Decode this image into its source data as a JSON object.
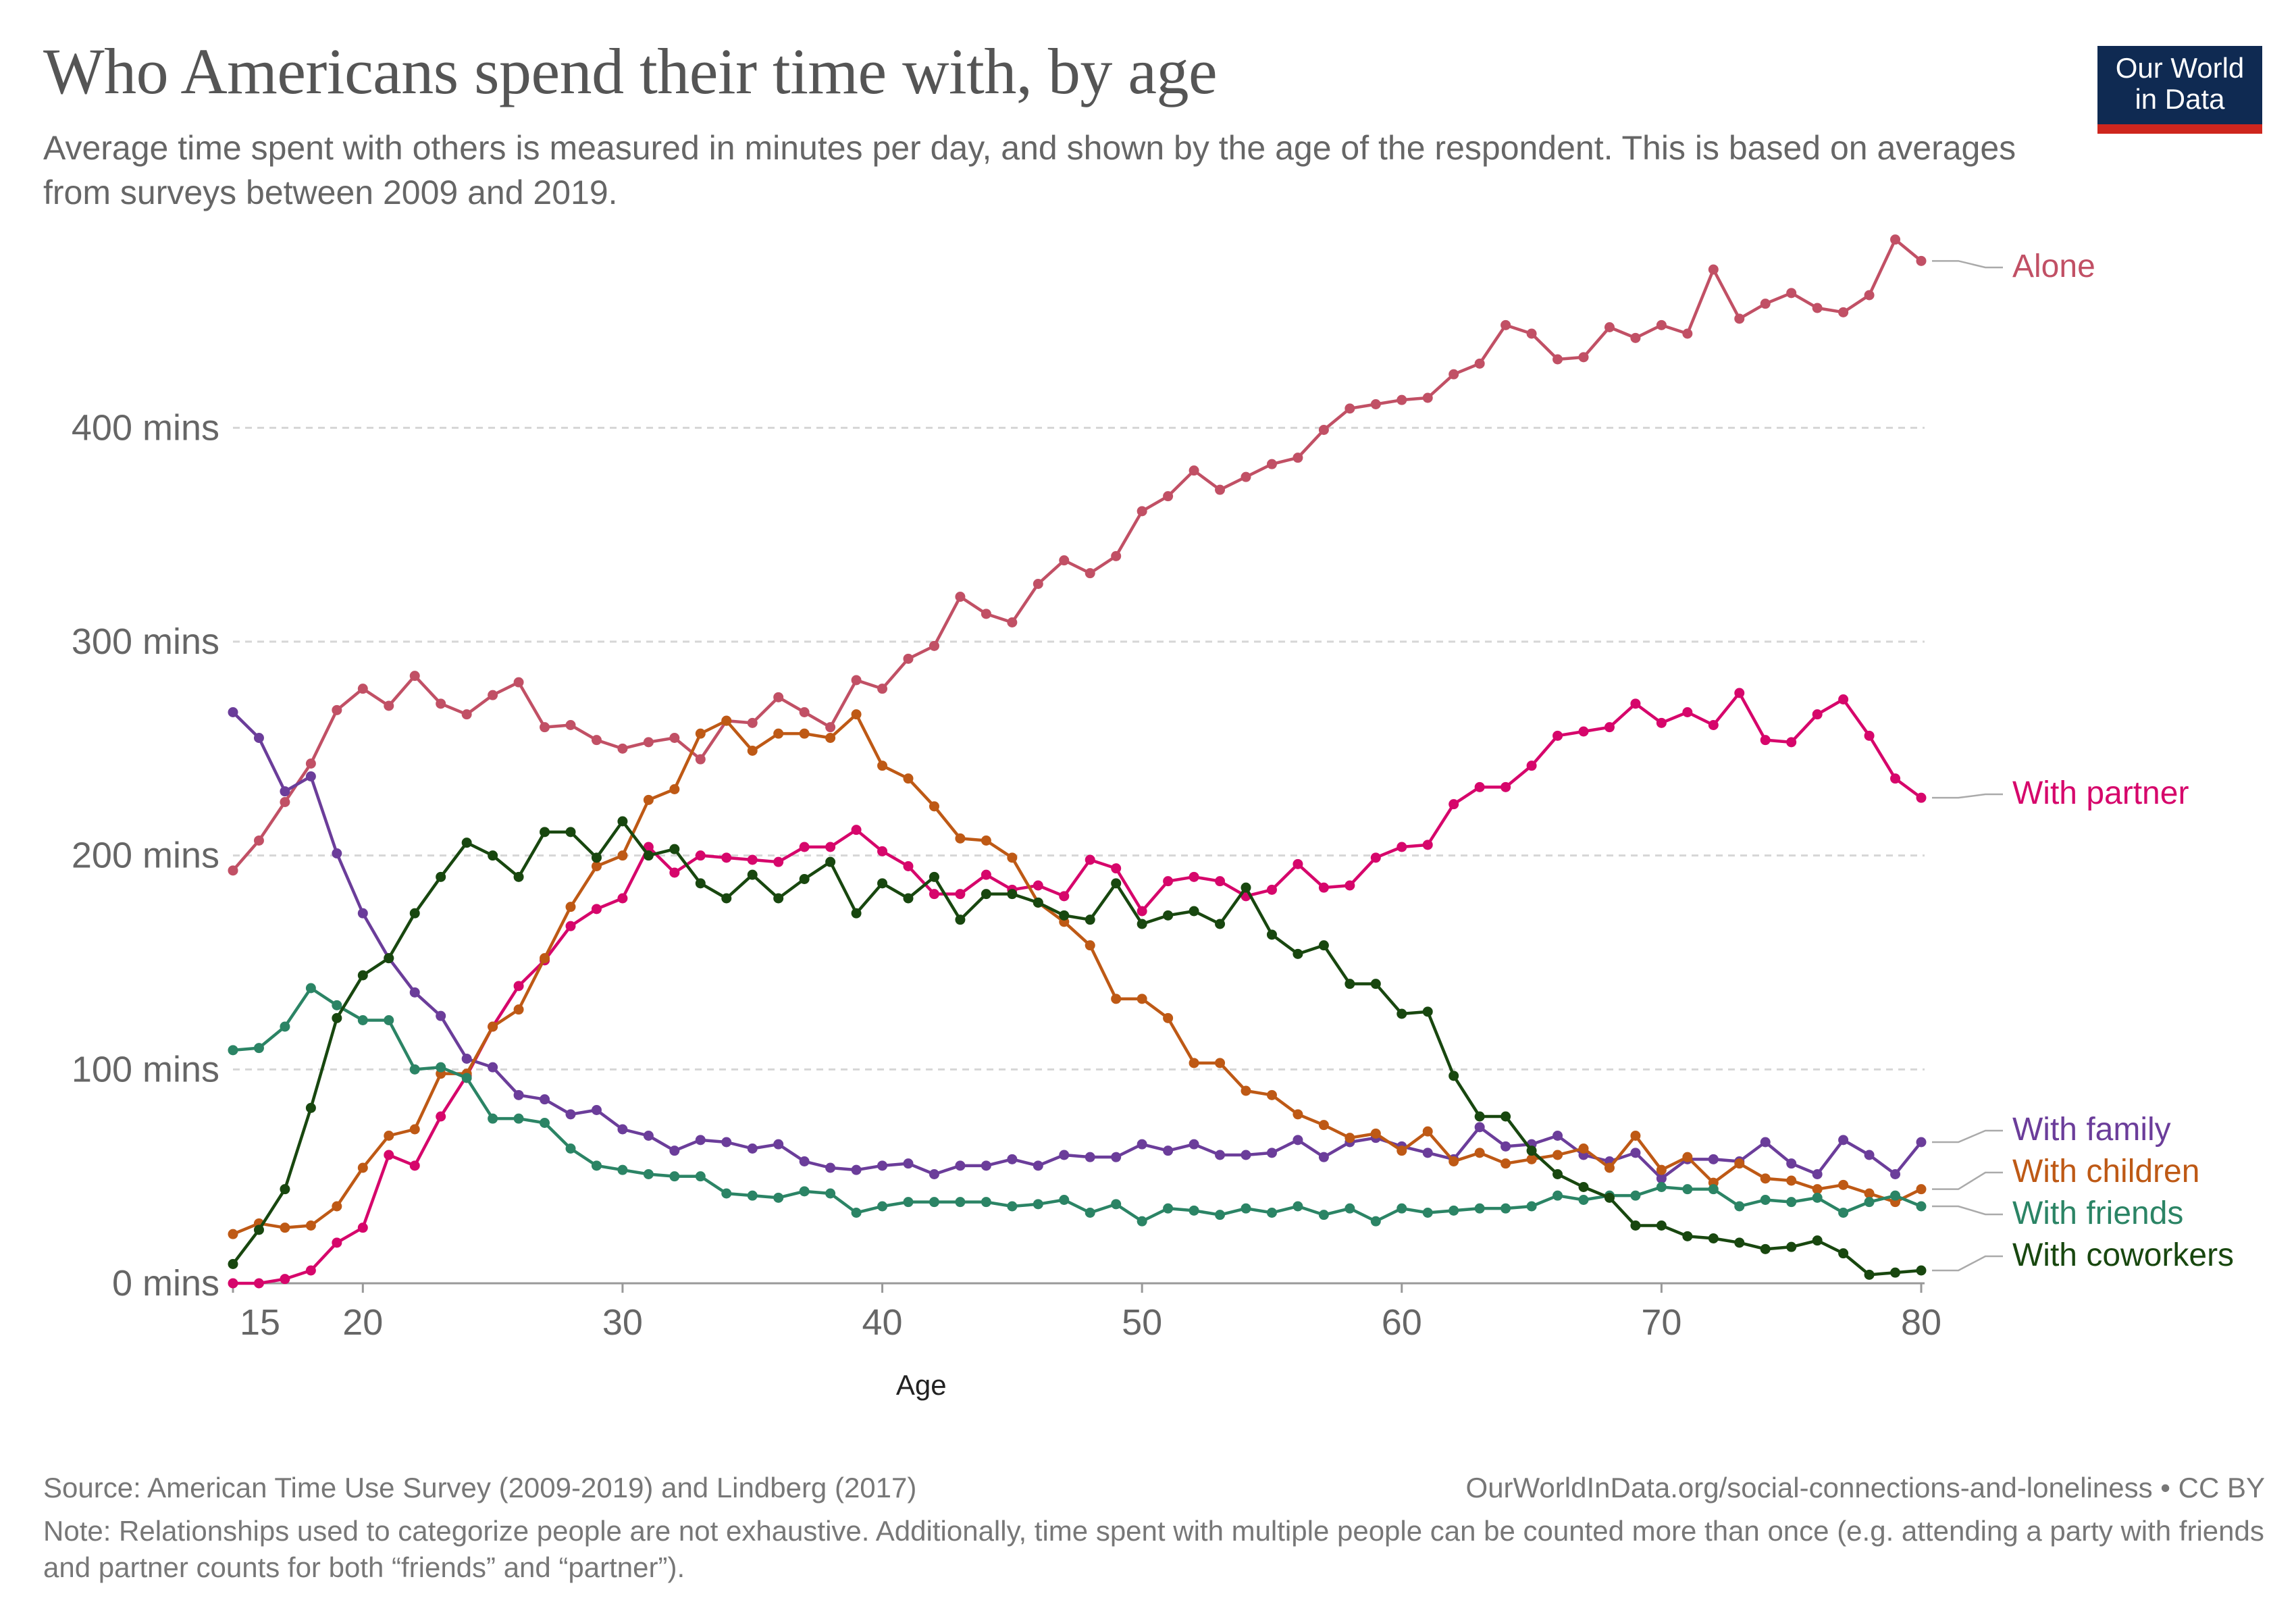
{
  "header": {
    "title": "Who Americans spend their time with, by age",
    "subtitle": "Average time spent with others is measured in minutes per day, and shown by the age of the respondent. This is based on averages from surveys between 2009 and 2019."
  },
  "logo": {
    "line1": "Our World",
    "line2": "in Data"
  },
  "footer": {
    "source": "Source: American Time Use Survey (2009-2019) and Lindberg (2017)",
    "url": "OurWorldInData.org/social-connections-and-loneliness • CC BY",
    "note": "Note: Relationships used to categorize people are not exhaustive. Additionally, time spent with multiple people can be counted more than once (e.g. attending a party with friends and partner counts for both “friends” and “partner”)."
  },
  "chart_data": {
    "type": "line",
    "xlabel": "Age",
    "ylabel": "",
    "xlim": [
      15,
      80
    ],
    "ylim": [
      0,
      480
    ],
    "x_ticks": [
      15,
      20,
      30,
      40,
      50,
      60,
      70,
      80
    ],
    "y_ticks": [
      0,
      100,
      200,
      300,
      400
    ],
    "y_tick_suffix": " mins",
    "grid": "horizontal dashed",
    "legend": "right (inline labels)",
    "x": [
      15,
      16,
      17,
      18,
      19,
      20,
      21,
      22,
      23,
      24,
      25,
      26,
      27,
      28,
      29,
      30,
      31,
      32,
      33,
      34,
      35,
      36,
      37,
      38,
      39,
      40,
      41,
      42,
      43,
      44,
      45,
      46,
      47,
      48,
      49,
      50,
      51,
      52,
      53,
      54,
      55,
      56,
      57,
      58,
      59,
      60,
      61,
      62,
      63,
      64,
      65,
      66,
      67,
      68,
      69,
      70,
      71,
      72,
      73,
      74,
      75,
      76,
      77,
      78,
      79,
      80
    ],
    "series": [
      {
        "name": "Alone",
        "color": "#c15065",
        "values": [
          193,
          207,
          225,
          243,
          268,
          278,
          270,
          284,
          271,
          266,
          275,
          281,
          260,
          261,
          254,
          250,
          253,
          255,
          245,
          263,
          262,
          274,
          267,
          260,
          282,
          278,
          292,
          298,
          321,
          313,
          309,
          327,
          338,
          332,
          340,
          361,
          368,
          380,
          371,
          377,
          383,
          386,
          399,
          409,
          411,
          413,
          414,
          425,
          430,
          448,
          444,
          432,
          433,
          447,
          442,
          448,
          444,
          474,
          451,
          458,
          463,
          456,
          454,
          462,
          488,
          478
        ]
      },
      {
        "name": "With partner",
        "color": "#d6066b",
        "values": [
          0,
          0,
          2,
          6,
          19,
          26,
          60,
          55,
          78,
          97,
          120,
          139,
          151,
          167,
          175,
          180,
          204,
          192,
          200,
          199,
          198,
          197,
          204,
          204,
          212,
          202,
          195,
          182,
          182,
          191,
          184,
          186,
          181,
          198,
          194,
          174,
          188,
          190,
          188,
          181,
          184,
          196,
          185,
          186,
          199,
          204,
          205,
          224,
          232,
          232,
          242,
          256,
          258,
          260,
          271,
          262,
          267,
          261,
          276,
          254,
          253,
          266,
          273,
          256,
          236,
          227
        ]
      },
      {
        "name": "With family",
        "color": "#6b3d9a",
        "values": [
          267,
          255,
          230,
          237,
          201,
          173,
          152,
          136,
          125,
          105,
          101,
          88,
          86,
          79,
          81,
          72,
          69,
          62,
          67,
          66,
          63,
          65,
          57,
          54,
          53,
          55,
          56,
          51,
          55,
          55,
          58,
          55,
          60,
          59,
          59,
          65,
          62,
          65,
          60,
          60,
          61,
          67,
          59,
          66,
          68,
          64,
          61,
          58,
          73,
          64,
          65,
          69,
          60,
          57,
          61,
          49,
          58,
          58,
          57,
          66,
          56,
          51,
          67,
          60,
          51,
          66
        ]
      },
      {
        "name": "With children",
        "color": "#be5915",
        "values": [
          23,
          28,
          26,
          27,
          36,
          54,
          69,
          72,
          98,
          98,
          120,
          128,
          152,
          176,
          195,
          200,
          226,
          231,
          257,
          263,
          249,
          257,
          257,
          255,
          266,
          242,
          236,
          223,
          208,
          207,
          199,
          178,
          169,
          158,
          133,
          133,
          124,
          103,
          103,
          90,
          88,
          79,
          74,
          68,
          70,
          62,
          71,
          57,
          61,
          56,
          58,
          60,
          63,
          54,
          69,
          53,
          59,
          47,
          56,
          49,
          48,
          44,
          46,
          42,
          38,
          44
        ]
      },
      {
        "name": "With friends",
        "color": "#2b8465",
        "values": [
          109,
          110,
          120,
          138,
          130,
          123,
          123,
          100,
          101,
          96,
          77,
          77,
          75,
          63,
          55,
          53,
          51,
          50,
          50,
          42,
          41,
          40,
          43,
          42,
          33,
          36,
          38,
          38,
          38,
          38,
          36,
          37,
          39,
          33,
          37,
          29,
          35,
          34,
          32,
          35,
          33,
          36,
          32,
          35,
          29,
          35,
          33,
          34,
          35,
          35,
          36,
          41,
          39,
          41,
          41,
          45,
          44,
          44,
          36,
          39,
          38,
          40,
          33,
          38,
          41,
          36
        ]
      },
      {
        "name": "With coworkers",
        "color": "#18470f",
        "values": [
          9,
          25,
          44,
          82,
          124,
          144,
          152,
          173,
          190,
          206,
          200,
          190,
          211,
          211,
          199,
          216,
          200,
          203,
          187,
          180,
          191,
          180,
          189,
          197,
          173,
          187,
          180,
          190,
          170,
          182,
          182,
          178,
          172,
          170,
          187,
          168,
          172,
          174,
          168,
          185,
          163,
          154,
          158,
          140,
          140,
          126,
          127,
          97,
          78,
          78,
          62,
          51,
          45,
          40,
          27,
          27,
          22,
          21,
          19,
          16,
          17,
          20,
          14,
          4,
          5,
          6
        ]
      }
    ]
  }
}
